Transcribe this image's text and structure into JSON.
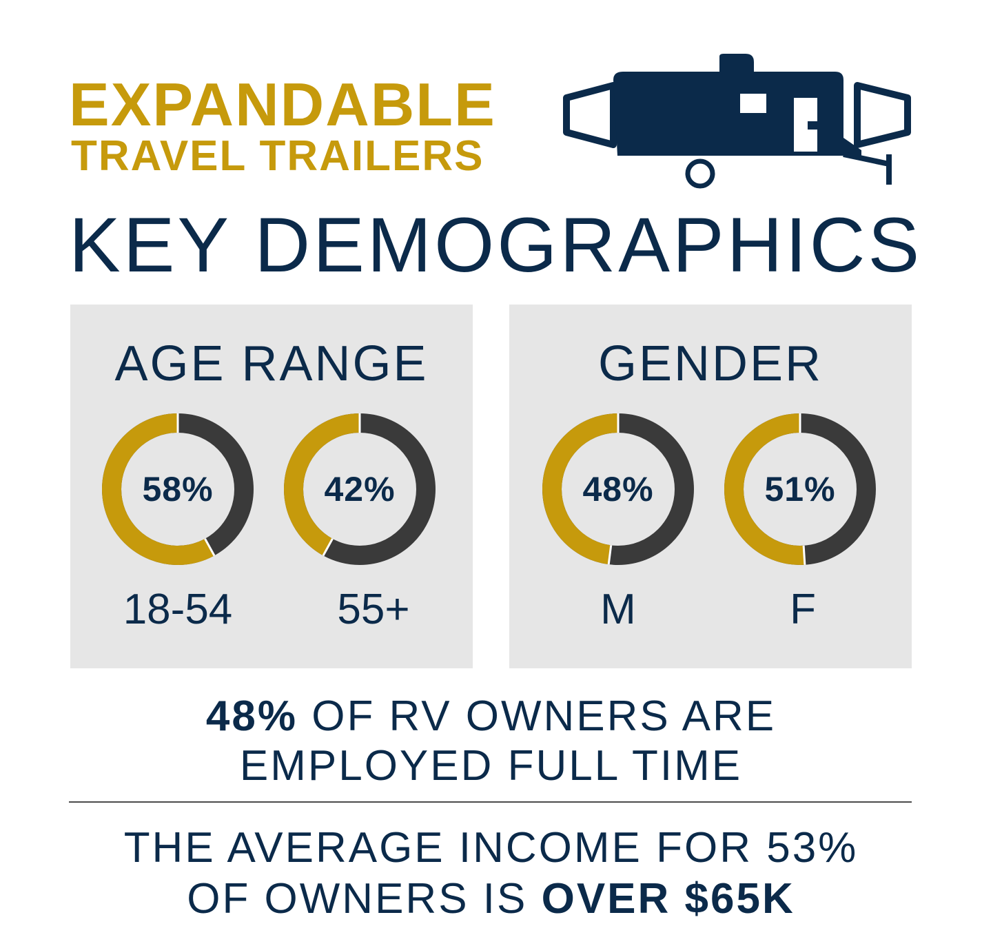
{
  "header": {
    "title_line1": "EXPANDABLE",
    "title_line2": "TRAVEL TRAILERS",
    "heading": "KEY DEMOGRAPHICS",
    "trailer_icon": "trailer-icon"
  },
  "colors": {
    "gold": "#c69a0c",
    "navy": "#0b2a4a",
    "dark_ring": "#3a3a3a",
    "panel_bg": "#e6e6e6"
  },
  "panels": [
    {
      "title": "AGE RANGE",
      "donuts": [
        {
          "value_text": "58%",
          "percent": 58,
          "label": "18-54"
        },
        {
          "value_text": "42%",
          "percent": 42,
          "label": "55+"
        }
      ]
    },
    {
      "title": "GENDER",
      "donuts": [
        {
          "value_text": "48%",
          "percent": 48,
          "label": "M"
        },
        {
          "value_text": "51%",
          "percent": 51,
          "label": "F"
        }
      ]
    }
  ],
  "stats": {
    "employment": {
      "highlight": "48%",
      "rest_line1": " OF RV OWNERS ARE",
      "line2": "EMPLOYED FULL TIME"
    },
    "income": {
      "line1": "THE AVERAGE INCOME FOR 53%",
      "line2_prefix": "OF OWNERS IS ",
      "highlight": "OVER $65K"
    }
  }
}
